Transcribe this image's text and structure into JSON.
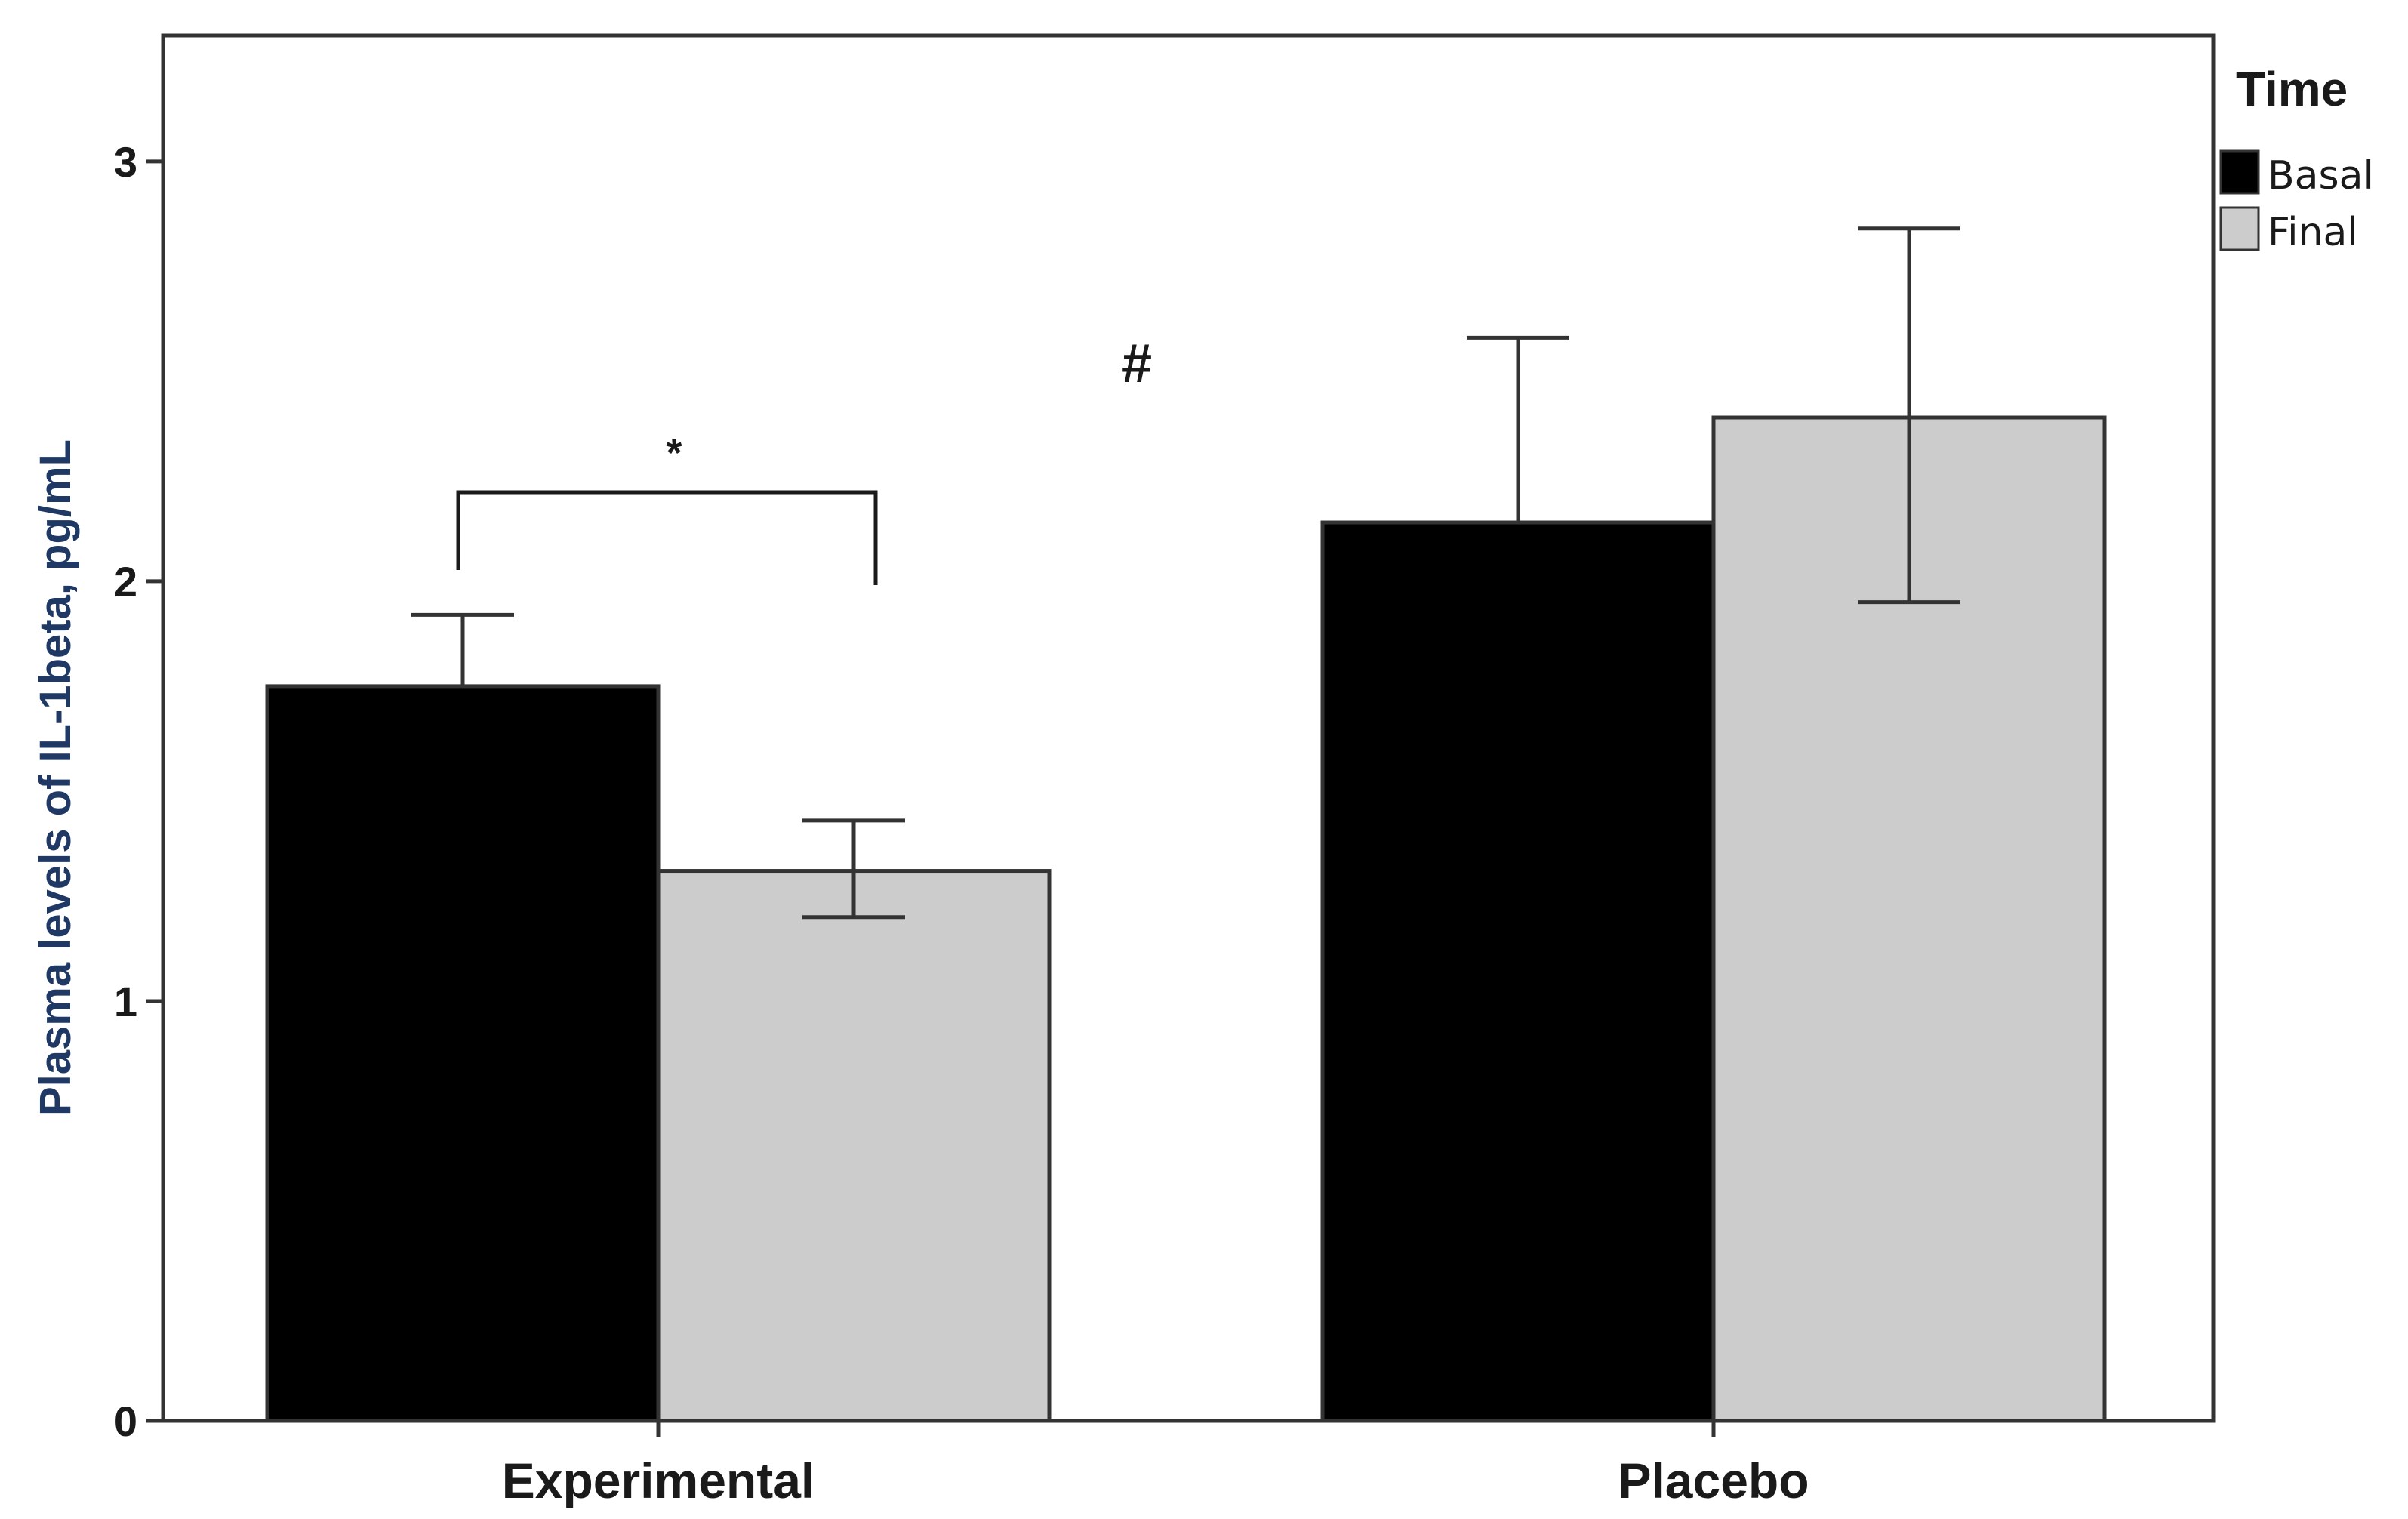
{
  "chart_data": {
    "type": "bar",
    "title": "",
    "xlabel": "",
    "ylabel": "Plasma levels of IL-1beta, pg/mL",
    "ylim": [
      0,
      3.3
    ],
    "yticks": [
      0,
      1,
      2,
      3
    ],
    "ytick_labels": [
      "0",
      "1",
      "2",
      "3"
    ],
    "categories": [
      "Experimental",
      "Placebo"
    ],
    "series": [
      {
        "name": "Basal",
        "color": "#000000",
        "values": [
          1.75,
          2.14
        ],
        "err_high": [
          1.92,
          2.58
        ]
      },
      {
        "name": "Final",
        "color": "#cccccc",
        "values": [
          1.31,
          2.39
        ],
        "err_low": [
          1.2,
          1.95
        ],
        "err_high": [
          1.43,
          2.84
        ]
      }
    ],
    "legend": {
      "title": "Time",
      "position": "top-right"
    },
    "annotations": {
      "star": "*",
      "hash": "#"
    },
    "grid": false,
    "colors": {
      "axis": "#333333",
      "ylabel": "#1f3864",
      "ylabel_accent": "#c55a11"
    }
  }
}
